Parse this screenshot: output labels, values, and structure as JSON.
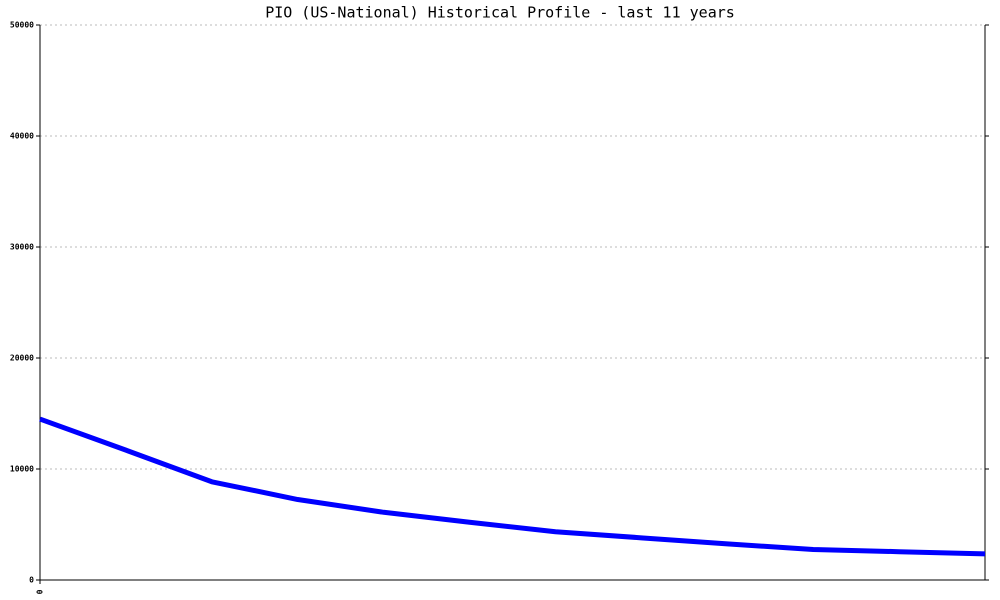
{
  "chart_data": {
    "type": "line",
    "title": "PIO (US-National) Historical Profile - last 11 years",
    "categories": [
      "0",
      null,
      null,
      null,
      null,
      null,
      null,
      null,
      null,
      null,
      null,
      null
    ],
    "series": [
      {
        "color": "#0000ff",
        "values": [
          14500,
          11700,
          8850,
          7250,
          6100,
          5200,
          4350,
          3800,
          3250,
          2750,
          2550,
          2350
        ]
      }
    ],
    "ylim": [
      0,
      50000
    ],
    "yticks": [
      0,
      10000,
      20000,
      30000,
      40000,
      50000
    ],
    "grid": true
  }
}
